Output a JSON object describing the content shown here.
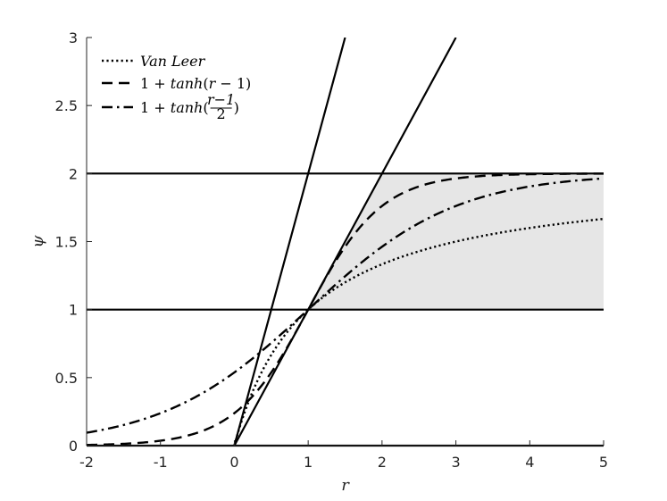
{
  "chart_data": {
    "type": "line",
    "title": "",
    "xlabel": "r",
    "ylabel": "ψ",
    "xlim": [
      -2,
      5
    ],
    "ylim": [
      0,
      3
    ],
    "xticks": [
      -2,
      -1,
      0,
      1,
      2,
      3,
      4,
      5
    ],
    "xtick_labels": [
      "-2",
      "-1",
      "0",
      "1",
      "2",
      "3",
      "4",
      "5"
    ],
    "yticks": [
      0,
      0.5,
      1,
      1.5,
      2,
      2.5,
      3
    ],
    "ytick_labels": [
      "0",
      "0.5",
      "1",
      "1.5",
      "2",
      "2.5",
      "3"
    ],
    "grid": false,
    "legend_position": "top-left",
    "series": [
      {
        "name": "Van Leer",
        "style": "dotted",
        "formula": "(r+|r|)/(1+|r|)",
        "x": [
          0,
          0.25,
          0.5,
          0.75,
          1,
          1.5,
          2,
          2.5,
          3,
          3.5,
          4,
          4.5,
          5
        ],
        "values": [
          0,
          0.4,
          0.667,
          0.857,
          1,
          1.2,
          1.333,
          1.429,
          1.5,
          1.556,
          1.6,
          1.636,
          1.667
        ]
      },
      {
        "name": "1 + tanh(r − 1)",
        "style": "dashed",
        "formula": "1+tanh(r-1)",
        "x": [
          -2,
          -1.5,
          -1,
          -0.5,
          0,
          0.25,
          0.5,
          0.75,
          1,
          1.25,
          1.5,
          1.75,
          2,
          2.5,
          3,
          4,
          5
        ],
        "values": [
          0.005,
          0.013,
          0.036,
          0.095,
          0.238,
          0.365,
          0.538,
          0.755,
          1,
          1.245,
          1.462,
          1.635,
          1.762,
          1.905,
          1.964,
          1.995,
          1.999
        ]
      },
      {
        "name": "1 + tanh((r−1)/2)",
        "style": "dashdot",
        "formula": "1+tanh((r-1)/2)",
        "x": [
          -2,
          -1.5,
          -1,
          -0.5,
          0,
          0.5,
          1,
          1.5,
          2,
          2.5,
          3,
          3.5,
          4,
          4.5,
          5
        ],
        "values": [
          0.095,
          0.149,
          0.238,
          0.365,
          0.538,
          0.755,
          1,
          1.245,
          1.462,
          1.635,
          1.762,
          1.848,
          1.905,
          1.941,
          1.964
        ]
      }
    ],
    "reference_lines": [
      {
        "kind": "horizontal",
        "y": 0
      },
      {
        "kind": "horizontal",
        "y": 1
      },
      {
        "kind": "horizontal",
        "y": 2
      },
      {
        "kind": "line",
        "x": [
          0,
          1.5
        ],
        "values": [
          0,
          3
        ]
      },
      {
        "kind": "line",
        "x": [
          0,
          3
        ],
        "values": [
          0,
          3
        ]
      }
    ],
    "shaded_region": {
      "description": "second-order TVD region",
      "color": "#e6e6e6",
      "x": [
        0.5,
        1,
        2,
        5,
        5,
        2,
        1
      ],
      "values": [
        1,
        1,
        2,
        2,
        1,
        1,
        1
      ]
    },
    "legend": {
      "entries": [
        {
          "key": "van-leer",
          "label_parts": [
            {
              "text": "Van Leer",
              "italic": true
            }
          ]
        },
        {
          "key": "tanh",
          "label_parts": [
            {
              "text": "1 + ",
              "italic": false
            },
            {
              "text": "tanh",
              "italic": true
            },
            {
              "text": "(",
              "italic": false
            },
            {
              "text": "r",
              "italic": true
            },
            {
              "text": " − 1)",
              "italic": false
            }
          ]
        },
        {
          "key": "tanh-half",
          "label_parts": [
            {
              "text": "1 + ",
              "italic": false
            },
            {
              "text": "tanh",
              "italic": true
            },
            {
              "text": "(",
              "italic": false
            }
          ],
          "fraction": {
            "num": "r−1",
            "den": "2"
          },
          "tail": ")"
        }
      ]
    }
  }
}
